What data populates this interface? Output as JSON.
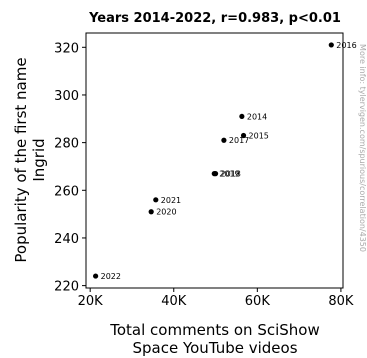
{
  "chart_data": {
    "type": "scatter",
    "title": "Years 2014-2022, r=0.983, p<0.01",
    "xlabel_lines": [
      "Total comments on SciShow",
      "Space YouTube videos"
    ],
    "ylabel_lines": [
      "Popularity of the first name",
      "Ingrid"
    ],
    "xlim": [
      19000,
      80500
    ],
    "ylim": [
      219,
      326
    ],
    "xticks": [
      {
        "value": 20000,
        "label": "20K"
      },
      {
        "value": 40000,
        "label": "40K"
      },
      {
        "value": 60000,
        "label": "60K"
      },
      {
        "value": 80000,
        "label": "80K"
      }
    ],
    "yticks": [
      {
        "value": 220,
        "label": "220"
      },
      {
        "value": 240,
        "label": "240"
      },
      {
        "value": 260,
        "label": "260"
      },
      {
        "value": 280,
        "label": "280"
      },
      {
        "value": 300,
        "label": "300"
      },
      {
        "value": 320,
        "label": "320"
      }
    ],
    "points": [
      {
        "label": "2014",
        "x": 56300,
        "y": 291
      },
      {
        "label": "2015",
        "x": 56700,
        "y": 283
      },
      {
        "label": "2016",
        "x": 77700,
        "y": 321
      },
      {
        "label": "2017",
        "x": 52000,
        "y": 281
      },
      {
        "label": "2018",
        "x": 50000,
        "y": 267
      },
      {
        "label": "2019",
        "x": 49700,
        "y": 267
      },
      {
        "label": "2020",
        "x": 34600,
        "y": 251
      },
      {
        "label": "2021",
        "x": 35700,
        "y": 256
      },
      {
        "label": "2022",
        "x": 21300,
        "y": 224
      }
    ],
    "point_color": "#000000",
    "grid": false,
    "watermark": "More info: tylervigen.com/spurious/correlation/4350"
  }
}
